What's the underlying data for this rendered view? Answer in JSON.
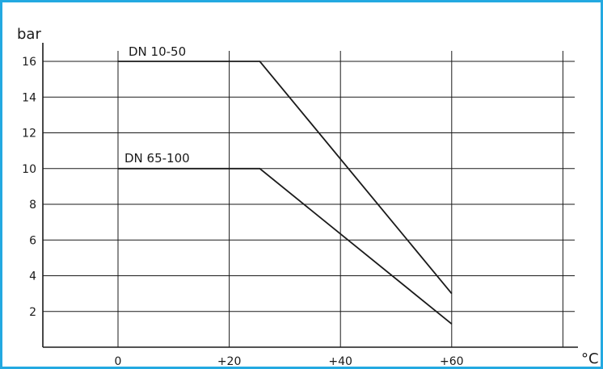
{
  "chart_data": {
    "type": "line",
    "ylabel": "bar",
    "xlabel": "°C",
    "xlim": [
      -20,
      80
    ],
    "ylim": [
      0,
      16
    ],
    "x_ticks": [
      {
        "value": 0,
        "label": "0"
      },
      {
        "value": 20,
        "label": "+20"
      },
      {
        "value": 40,
        "label": "+40"
      },
      {
        "value": 60,
        "label": "+60"
      }
    ],
    "x_gridlines": [
      0,
      20,
      40,
      60,
      80
    ],
    "y_ticks": [
      2,
      4,
      6,
      8,
      10,
      12,
      14,
      16
    ],
    "grid": true,
    "series": [
      {
        "name": "DN 10-50",
        "points": [
          [
            0,
            16
          ],
          [
            25.5,
            16
          ],
          [
            60,
            3
          ]
        ]
      },
      {
        "name": "DN 65-100",
        "points": [
          [
            0,
            10
          ],
          [
            25.5,
            10
          ],
          [
            60,
            1.3
          ]
        ]
      }
    ]
  },
  "colors": {
    "frame_border": "#23a9e1",
    "grid": "#1a1a1a",
    "series": "#1a1a1a"
  }
}
